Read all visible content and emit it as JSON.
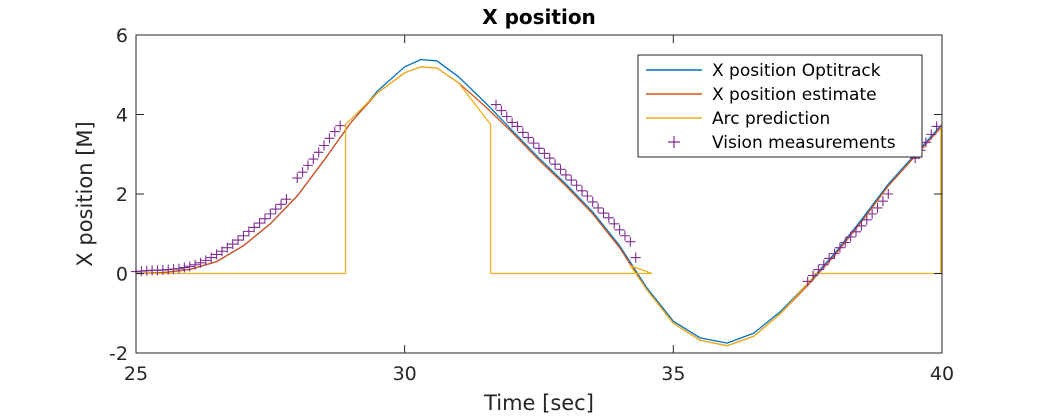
{
  "chart_data": {
    "type": "line",
    "title": "X position",
    "xlabel": "Time [sec]",
    "ylabel": "X position [M]",
    "xlim": [
      25,
      40
    ],
    "ylim": [
      -2,
      6
    ],
    "xticks": [
      25,
      30,
      35,
      40
    ],
    "yticks": [
      -2,
      0,
      2,
      4,
      6
    ],
    "xtick_labels": [
      "25",
      "30",
      "35",
      "40"
    ],
    "ytick_labels": [
      "-2",
      "0",
      "2",
      "4",
      "6"
    ],
    "grid": false,
    "legend_position": "top-right",
    "series": [
      {
        "name": "X position Optitrack",
        "kind": "line",
        "color": "#0072BD",
        "x": [
          25.0,
          25.5,
          26.0,
          26.5,
          27.0,
          27.5,
          28.0,
          28.5,
          29.0,
          29.5,
          30.0,
          30.3,
          30.6,
          31.0,
          31.5,
          32.0,
          32.5,
          33.0,
          33.5,
          34.0,
          34.5,
          35.0,
          35.5,
          36.0,
          36.5,
          37.0,
          37.5,
          38.0,
          38.5,
          39.0,
          39.5,
          40.0
        ],
        "y": [
          0.0,
          0.02,
          0.1,
          0.3,
          0.7,
          1.25,
          1.95,
          2.85,
          3.8,
          4.6,
          5.2,
          5.38,
          5.35,
          4.95,
          4.3,
          3.6,
          2.9,
          2.25,
          1.55,
          0.7,
          -0.35,
          -1.2,
          -1.62,
          -1.75,
          -1.5,
          -0.95,
          -0.25,
          0.5,
          1.35,
          2.25,
          3.0,
          3.75
        ]
      },
      {
        "name": "X position estimate",
        "kind": "line",
        "color": "#D95319",
        "x": [
          25.0,
          25.5,
          26.0,
          26.5,
          27.0,
          27.5,
          28.0,
          28.5,
          29.0,
          29.5,
          30.0,
          30.3,
          30.6,
          31.0,
          31.5,
          32.0,
          32.5,
          33.0,
          33.5,
          34.0,
          34.5,
          35.0,
          35.5,
          36.0,
          36.5,
          37.0,
          37.5,
          38.0,
          38.5,
          39.0,
          39.5,
          40.0
        ],
        "y": [
          0.0,
          0.02,
          0.1,
          0.3,
          0.7,
          1.25,
          1.95,
          2.85,
          3.8,
          4.55,
          5.05,
          5.2,
          5.17,
          4.8,
          4.2,
          3.55,
          2.85,
          2.2,
          1.5,
          0.65,
          -0.4,
          -1.25,
          -1.68,
          -1.82,
          -1.58,
          -1.0,
          -0.3,
          0.45,
          1.3,
          2.2,
          2.95,
          3.7
        ]
      },
      {
        "name": "Arc prediction",
        "kind": "line",
        "color": "#EDB120",
        "x": [
          25.0,
          28.9,
          28.9,
          29.5,
          30.0,
          30.3,
          30.6,
          31.0,
          31.6,
          31.6,
          34.6,
          34.6,
          34.2,
          34.5,
          35.0,
          35.5,
          36.0,
          36.5,
          37.0,
          37.6,
          37.6,
          39.98,
          39.98,
          40.0
        ],
        "y": [
          0.0,
          0.0,
          3.75,
          4.55,
          5.05,
          5.2,
          5.17,
          4.8,
          3.75,
          0.0,
          0.0,
          0.0,
          0.2,
          -0.4,
          -1.25,
          -1.68,
          -1.82,
          -1.58,
          -1.0,
          -0.1,
          0.0,
          0.0,
          3.65,
          3.75
        ]
      },
      {
        "name": "Vision measurements",
        "kind": "scatter",
        "color": "#7E2F8E",
        "marker": "+",
        "x": [
          25.0,
          25.1,
          25.2,
          25.3,
          25.4,
          25.5,
          25.6,
          25.7,
          25.8,
          25.9,
          26.0,
          26.1,
          26.2,
          26.3,
          26.4,
          26.5,
          26.6,
          26.7,
          26.8,
          26.9,
          27.0,
          27.1,
          27.2,
          27.3,
          27.4,
          27.5,
          27.6,
          27.7,
          27.8,
          28.0,
          28.1,
          28.2,
          28.3,
          28.4,
          28.5,
          28.6,
          28.7,
          28.8,
          31.7,
          31.8,
          31.9,
          32.0,
          32.1,
          32.2,
          32.3,
          32.4,
          32.5,
          32.6,
          32.7,
          32.8,
          32.9,
          33.0,
          33.1,
          33.2,
          33.3,
          33.4,
          33.5,
          33.6,
          33.7,
          33.8,
          33.9,
          34.0,
          34.1,
          34.2,
          34.3,
          37.5,
          37.6,
          37.7,
          37.8,
          37.9,
          38.0,
          38.1,
          38.2,
          38.3,
          38.4,
          38.5,
          38.6,
          38.7,
          38.8,
          38.9,
          39.0,
          39.5,
          39.6,
          39.7,
          39.8,
          39.9
        ],
        "y": [
          0.05,
          0.06,
          0.07,
          0.08,
          0.08,
          0.09,
          0.1,
          0.11,
          0.12,
          0.15,
          0.18,
          0.22,
          0.27,
          0.33,
          0.4,
          0.48,
          0.56,
          0.65,
          0.74,
          0.84,
          0.95,
          1.06,
          1.16,
          1.27,
          1.38,
          1.5,
          1.62,
          1.74,
          1.87,
          2.4,
          2.55,
          2.72,
          2.88,
          3.05,
          3.22,
          3.4,
          3.57,
          3.72,
          4.25,
          4.1,
          3.95,
          3.8,
          3.7,
          3.55,
          3.42,
          3.28,
          3.15,
          3.02,
          2.9,
          2.75,
          2.62,
          2.48,
          2.35,
          2.22,
          2.08,
          1.95,
          1.8,
          1.65,
          1.52,
          1.4,
          1.25,
          1.1,
          0.95,
          0.8,
          0.4,
          -0.2,
          -0.05,
          0.1,
          0.22,
          0.38,
          0.5,
          0.65,
          0.78,
          0.92,
          1.05,
          1.2,
          1.35,
          1.5,
          1.65,
          1.82,
          2.0,
          2.9,
          3.1,
          3.3,
          3.5,
          3.7
        ]
      }
    ]
  }
}
